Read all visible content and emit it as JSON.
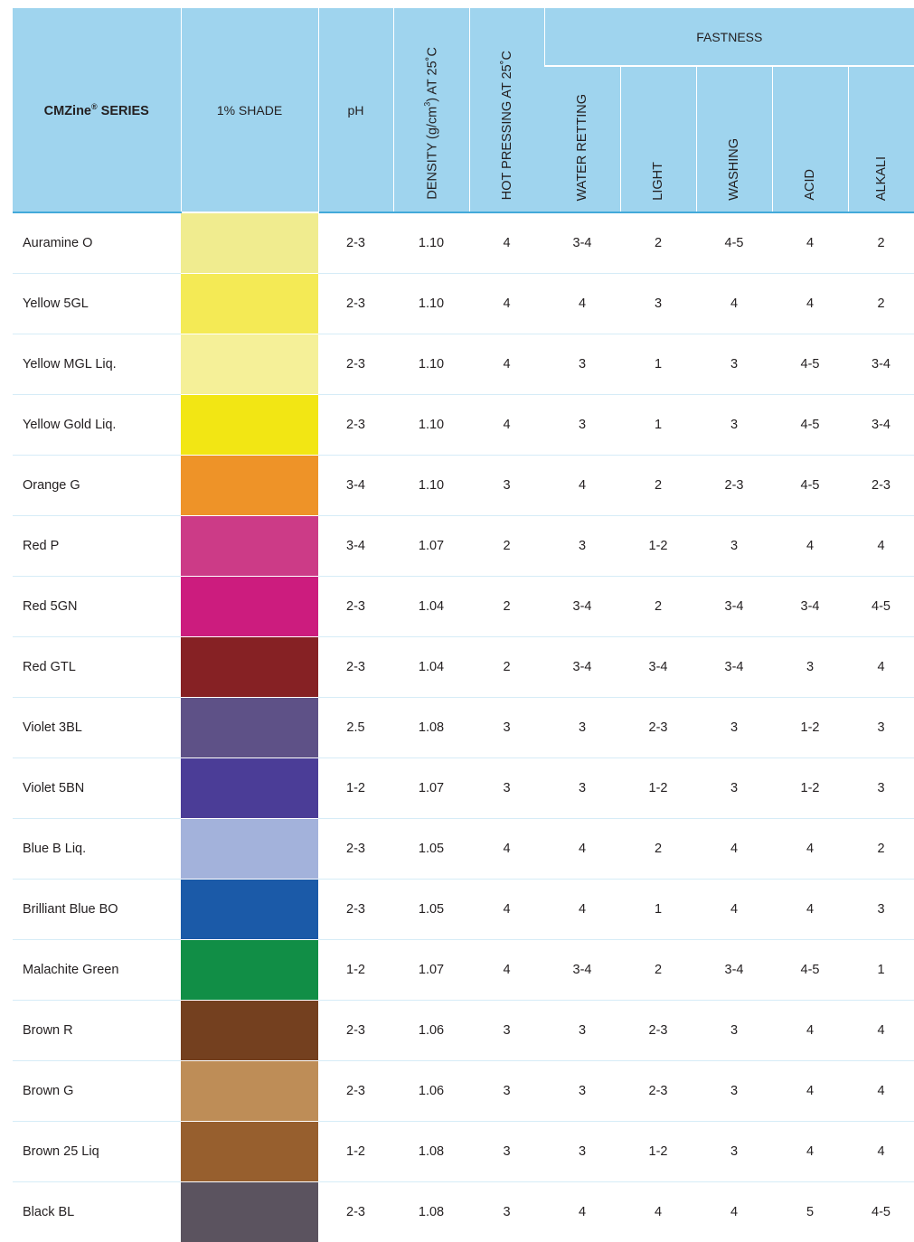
{
  "header": {
    "series": "CMZine",
    "series_mark": "®",
    "series_suffix": " SERIES",
    "shade": "1% SHADE",
    "ph": "pH",
    "density_a": "DENSITY (g/cm",
    "density_sup": "3",
    "density_b": ") AT 25˚C",
    "hot_pressing": "HOT PRESSING AT 25˚C",
    "fastness": "FASTNESS",
    "water_retting": "WATER RETTING",
    "light": "LIGHT",
    "washing": "WASHING",
    "acid": "ACID",
    "alkali": "ALKALI"
  },
  "rows": [
    {
      "name": "Auramine O",
      "color": "#f0ec8f",
      "ph": "2-3",
      "density": "1.10",
      "hot": "4",
      "water": "3-4",
      "light": "2",
      "washing": "4-5",
      "acid": "4",
      "alkali": "2"
    },
    {
      "name": "Yellow 5GL",
      "color": "#f4ea55",
      "ph": "2-3",
      "density": "1.10",
      "hot": "4",
      "water": "4",
      "light": "3",
      "washing": "4",
      "acid": "4",
      "alkali": "2"
    },
    {
      "name": "Yellow MGL Liq.",
      "color": "#f5f098",
      "ph": "2-3",
      "density": "1.10",
      "hot": "4",
      "water": "3",
      "light": "1",
      "washing": "3",
      "acid": "4-5",
      "alkali": "3-4"
    },
    {
      "name": "Yellow Gold Liq.",
      "color": "#f2e614",
      "ph": "2-3",
      "density": "1.10",
      "hot": "4",
      "water": "3",
      "light": "1",
      "washing": "3",
      "acid": "4-5",
      "alkali": "3-4"
    },
    {
      "name": "Orange G",
      "color": "#ee9328",
      "ph": "3-4",
      "density": "1.10",
      "hot": "3",
      "water": "4",
      "light": "2",
      "washing": "2-3",
      "acid": "4-5",
      "alkali": "2-3"
    },
    {
      "name": "Red P",
      "color": "#cc3b87",
      "ph": "3-4",
      "density": "1.07",
      "hot": "2",
      "water": "3",
      "light": "1-2",
      "washing": "3",
      "acid": "4",
      "alkali": "4"
    },
    {
      "name": "Red 5GN",
      "color": "#cc1c7e",
      "ph": "2-3",
      "density": "1.04",
      "hot": "2",
      "water": "3-4",
      "light": "2",
      "washing": "3-4",
      "acid": "3-4",
      "alkali": "4-5"
    },
    {
      "name": "Red GTL",
      "color": "#862124",
      "ph": "2-3",
      "density": "1.04",
      "hot": "2",
      "water": "3-4",
      "light": "3-4",
      "washing": "3-4",
      "acid": "3",
      "alkali": "4"
    },
    {
      "name": "Violet 3BL",
      "color": "#5e5187",
      "ph": "2.5",
      "density": "1.08",
      "hot": "3",
      "water": "3",
      "light": "2-3",
      "washing": "3",
      "acid": "1-2",
      "alkali": "3"
    },
    {
      "name": "Violet 5BN",
      "color": "#4b3d97",
      "ph": "1-2",
      "density": "1.07",
      "hot": "3",
      "water": "3",
      "light": "1-2",
      "washing": "3",
      "acid": "1-2",
      "alkali": "3"
    },
    {
      "name": "Blue B Liq.",
      "color": "#a3b2db",
      "ph": "2-3",
      "density": "1.05",
      "hot": "4",
      "water": "4",
      "light": "2",
      "washing": "4",
      "acid": "4",
      "alkali": "2"
    },
    {
      "name": "Brilliant Blue BO",
      "color": "#1b5aa8",
      "ph": "2-3",
      "density": "1.05",
      "hot": "4",
      "water": "4",
      "light": "1",
      "washing": "4",
      "acid": "4",
      "alkali": "3"
    },
    {
      "name": "Malachite Green",
      "color": "#118e46",
      "ph": "1-2",
      "density": "1.07",
      "hot": "4",
      "water": "3-4",
      "light": "2",
      "washing": "3-4",
      "acid": "4-5",
      "alkali": "1"
    },
    {
      "name": "Brown R",
      "color": "#74401f",
      "ph": "2-3",
      "density": "1.06",
      "hot": "3",
      "water": "3",
      "light": "2-3",
      "washing": "3",
      "acid": "4",
      "alkali": "4"
    },
    {
      "name": "Brown G",
      "color": "#be8d57",
      "ph": "2-3",
      "density": "1.06",
      "hot": "3",
      "water": "3",
      "light": "2-3",
      "washing": "3",
      "acid": "4",
      "alkali": "4"
    },
    {
      "name": "Brown 25 Liq",
      "color": "#975f2e",
      "ph": "1-2",
      "density": "1.08",
      "hot": "3",
      "water": "3",
      "light": "1-2",
      "washing": "3",
      "acid": "4",
      "alkali": "4"
    },
    {
      "name": "Black BL",
      "color": "#5b535f",
      "ph": "2-3",
      "density": "1.08",
      "hot": "3",
      "water": "4",
      "light": "4",
      "washing": "4",
      "acid": "5",
      "alkali": "4-5"
    }
  ]
}
